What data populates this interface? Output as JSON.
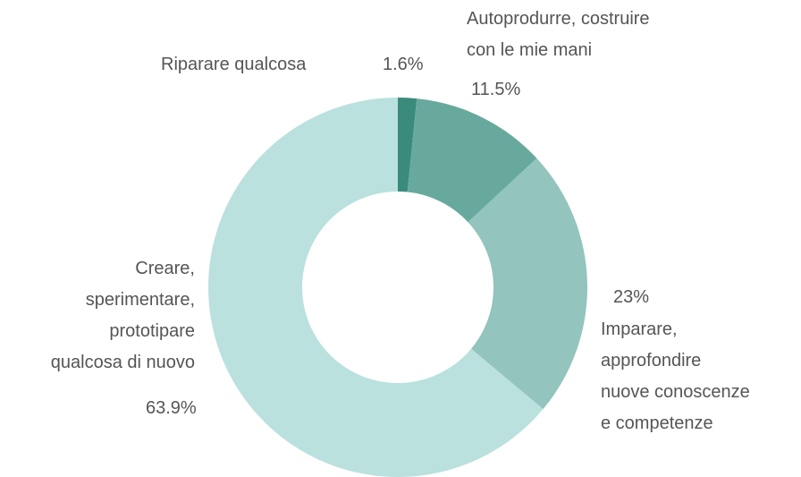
{
  "chart_data": {
    "type": "donut",
    "categories": [
      "Riparare qualcosa",
      "Autoprodurre, costruire\ncon le mie mani",
      "Imparare,\napprofondire\nnuove conoscenze\ne competenze",
      "Creare,\nsperimentare,\nprototipare\nqualcosa di nuovo"
    ],
    "values": [
      1.6,
      11.5,
      23,
      63.9
    ],
    "value_labels": [
      "1.6%",
      "11.5%",
      "23%",
      "63.9%"
    ],
    "colors": [
      "#3a8b7b",
      "#68a99e",
      "#93c4be",
      "#bae1de"
    ]
  }
}
